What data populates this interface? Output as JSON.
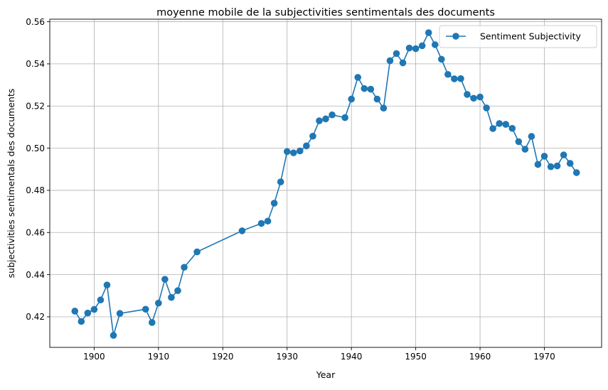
{
  "chart_data": {
    "type": "line",
    "title": "moyenne mobile de la subjectivities sentimentals des documents",
    "xlabel": "Year",
    "ylabel": "subjectivities sentimentals des documents",
    "xlim": [
      1893.1,
      1978.9
    ],
    "ylim": [
      0.4055,
      0.5612
    ],
    "xticks": [
      1900,
      1910,
      1920,
      1930,
      1940,
      1950,
      1960,
      1970
    ],
    "yticks": [
      0.42,
      0.44,
      0.46,
      0.48,
      0.5,
      0.52,
      0.54,
      0.56
    ],
    "grid": true,
    "legend_position": "top-right",
    "color": "#1f77b4",
    "series": [
      {
        "name": "Sentiment Subjectivity",
        "x": [
          1897,
          1898,
          1899,
          1900,
          1901,
          1902,
          1903,
          1904,
          1908,
          1909,
          1910,
          1911,
          1912,
          1913,
          1914,
          1916,
          1923,
          1926,
          1927,
          1928,
          1929,
          1930,
          1931,
          1932,
          1933,
          1934,
          1935,
          1936,
          1937,
          1939,
          1940,
          1941,
          1942,
          1943,
          1944,
          1945,
          1946,
          1947,
          1948,
          1949,
          1950,
          1951,
          1952,
          1953,
          1954,
          1955,
          1956,
          1957,
          1958,
          1959,
          1960,
          1961,
          1962,
          1963,
          1964,
          1965,
          1966,
          1967,
          1968,
          1969,
          1970,
          1971,
          1972,
          1973,
          1974,
          1975
        ],
        "y": [
          0.4227,
          0.4178,
          0.4218,
          0.4235,
          0.428,
          0.4351,
          0.4112,
          0.4216,
          0.4236,
          0.4173,
          0.4265,
          0.4378,
          0.4292,
          0.4324,
          0.4435,
          0.4508,
          0.4608,
          0.4643,
          0.4654,
          0.4739,
          0.484,
          0.4984,
          0.4978,
          0.4987,
          0.5011,
          0.5057,
          0.513,
          0.5139,
          0.5158,
          0.5145,
          0.5233,
          0.5336,
          0.5283,
          0.528,
          0.5233,
          0.519,
          0.5415,
          0.5449,
          0.5405,
          0.5475,
          0.5472,
          0.5486,
          0.5548,
          0.5491,
          0.5422,
          0.535,
          0.5329,
          0.533,
          0.5255,
          0.5237,
          0.5243,
          0.5191,
          0.5093,
          0.5117,
          0.5113,
          0.5094,
          0.5031,
          0.4995,
          0.5056,
          0.4923,
          0.4962,
          0.4912,
          0.4916,
          0.4968,
          0.4928,
          0.4884
        ]
      }
    ]
  }
}
